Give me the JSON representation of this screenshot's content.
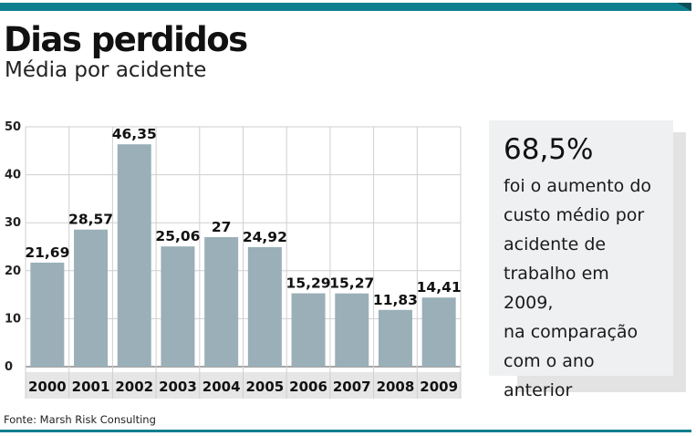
{
  "header": {
    "title": "Dias perdidos",
    "subtitle": "Média por acidente"
  },
  "callout": {
    "stat": "68,5%",
    "text": " foi o aumento do\ncusto médio por\nacidente de\ntrabalho em 2009,\nna comparação\ncom o ano anterior"
  },
  "source": "Fonte: Marsh Risk Consulting",
  "colors": {
    "accent": "#0e7f8f",
    "bar": "#9aafb8",
    "grid": "#cfcfcf",
    "axis_strip": "#e6e6e6"
  },
  "chart_data": {
    "type": "bar",
    "title": "Dias perdidos",
    "subtitle": "Média por acidente",
    "xlabel": "",
    "ylabel": "",
    "categories": [
      "2000",
      "2001",
      "2002",
      "2003",
      "2004",
      "2005",
      "2006",
      "2007",
      "2008",
      "2009"
    ],
    "values": [
      21.69,
      28.57,
      46.35,
      25.06,
      27,
      24.92,
      15.29,
      15.27,
      11.83,
      14.41
    ],
    "value_labels": [
      "21,69",
      "28,57",
      "46,35",
      "25,06",
      "27",
      "24,92",
      "15,29",
      "15,27",
      "11,83",
      "14,41"
    ],
    "ylim": [
      0,
      50
    ],
    "yticks": [
      0,
      10,
      20,
      30,
      40,
      50
    ],
    "ytick_labels": [
      "0",
      "10",
      "20",
      "30",
      "40",
      "50"
    ],
    "grid": true,
    "legend": "none"
  }
}
